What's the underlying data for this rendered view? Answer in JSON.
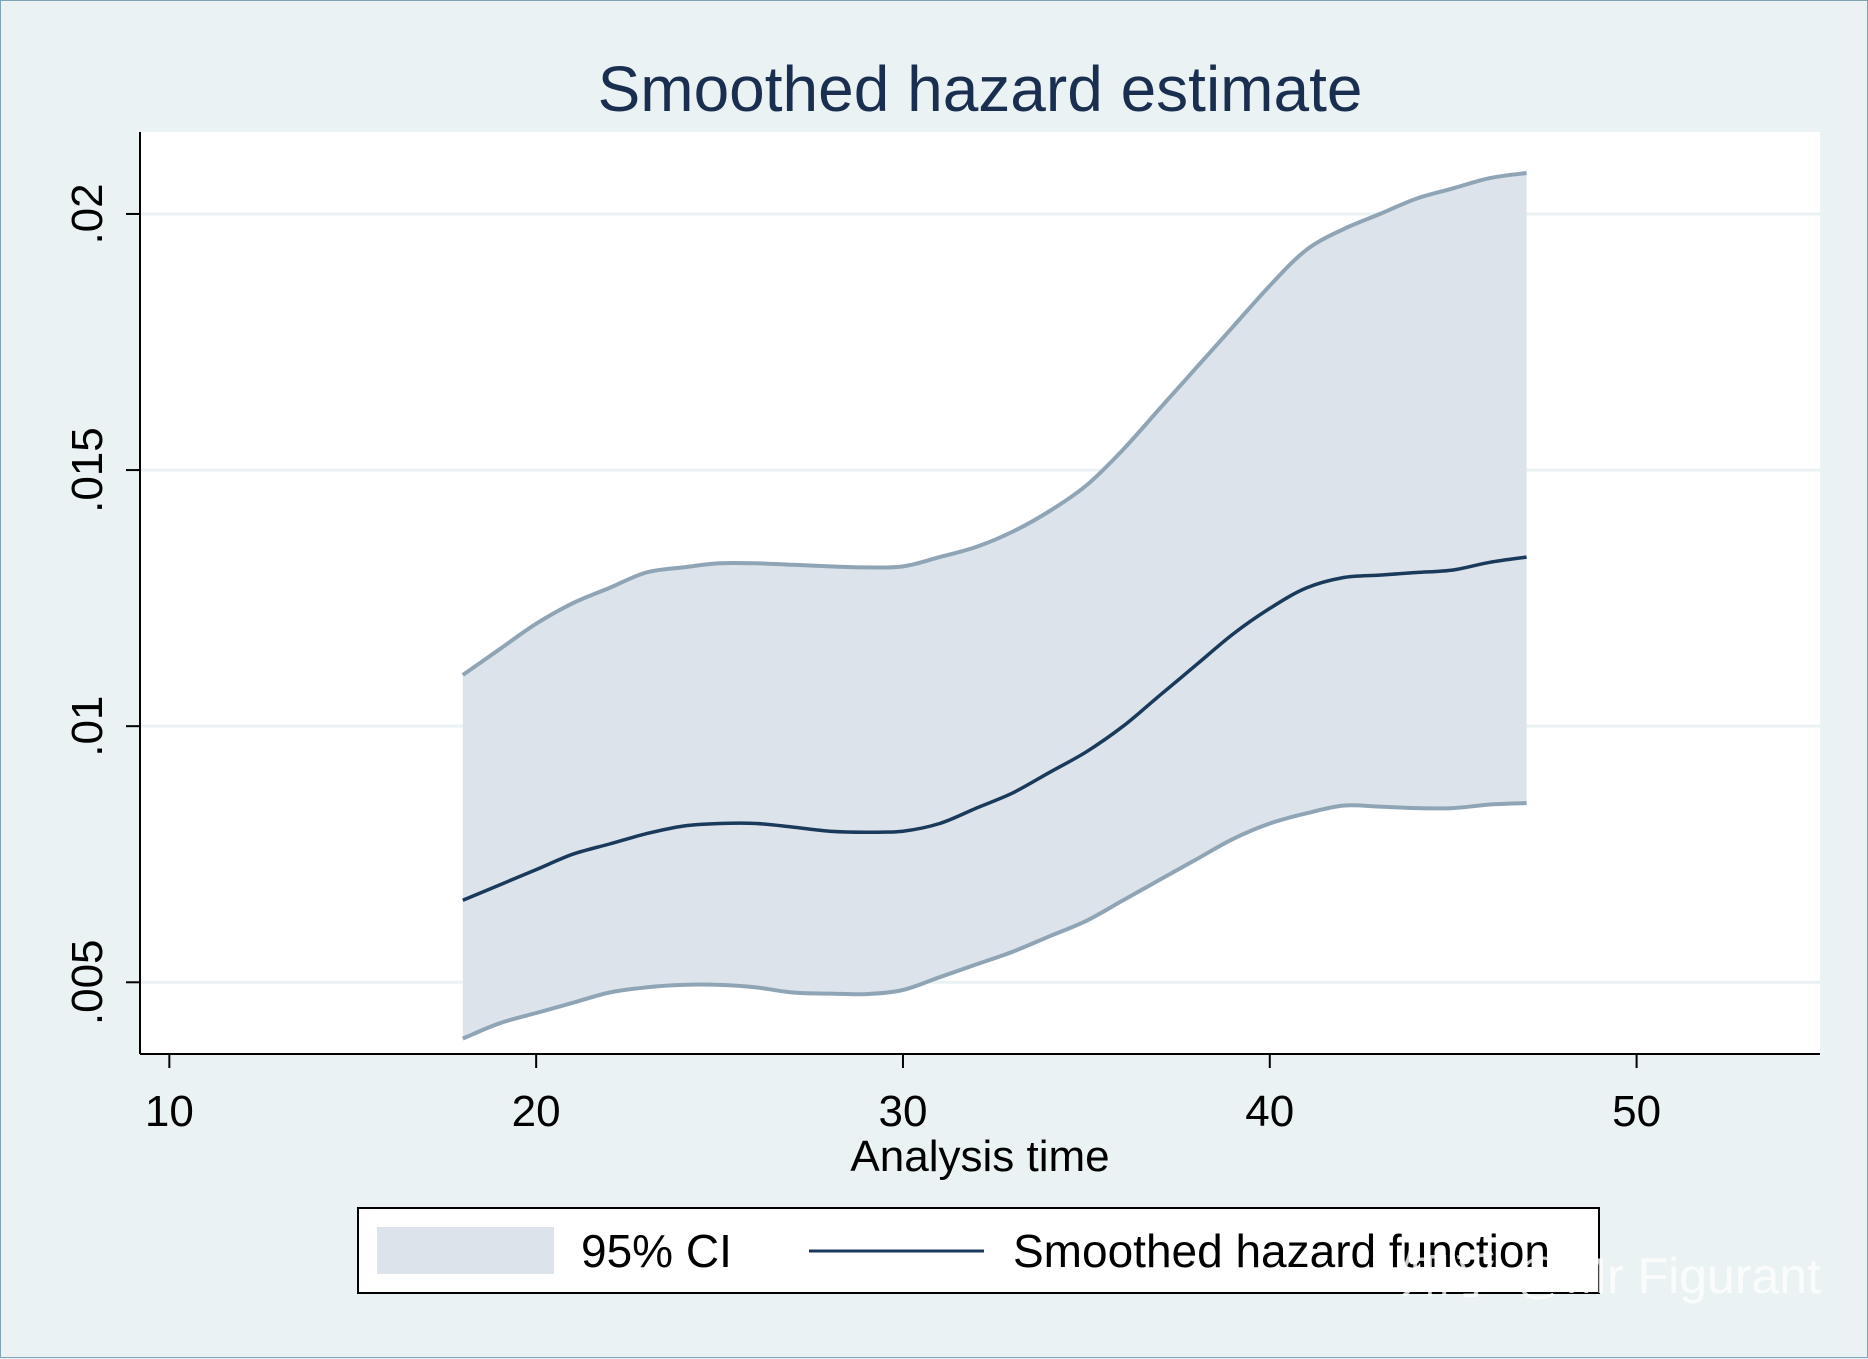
{
  "chart_data": {
    "type": "area",
    "title": "Smoothed hazard estimate",
    "xlabel": "Analysis time",
    "ylabel": "",
    "xlim": [
      9.2,
      55
    ],
    "ylim": [
      0.0036,
      0.0216
    ],
    "xticks": [
      10,
      20,
      30,
      40,
      50
    ],
    "xtick_labels": [
      "10",
      "20",
      "30",
      "40",
      "50"
    ],
    "yticks": [
      0.005,
      0.01,
      0.015,
      0.02
    ],
    "ytick_labels": [
      ".005",
      ".01",
      ".015",
      ".02"
    ],
    "grid": true,
    "legend_position": "bottom",
    "x": [
      18,
      19,
      20,
      21,
      22,
      23,
      24,
      25,
      26,
      27,
      28,
      29,
      30,
      31,
      32,
      33,
      34,
      35,
      36,
      37,
      38,
      39,
      40,
      41,
      42,
      43,
      44,
      45,
      46,
      47
    ],
    "series": [
      {
        "name": "95% CI",
        "kind": "band",
        "lower": [
          0.0039,
          0.0042,
          0.0044,
          0.0046,
          0.0048,
          0.0049,
          0.00495,
          0.00495,
          0.0049,
          0.0048,
          0.00478,
          0.00477,
          0.00485,
          0.0051,
          0.00535,
          0.0056,
          0.0059,
          0.0062,
          0.0066,
          0.007,
          0.0074,
          0.0078,
          0.0081,
          0.0083,
          0.00845,
          0.00843,
          0.0084,
          0.0084,
          0.00847,
          0.0085
        ],
        "upper": [
          0.011,
          0.0115,
          0.012,
          0.0124,
          0.0127,
          0.013,
          0.0131,
          0.01318,
          0.01318,
          0.01315,
          0.01312,
          0.0131,
          0.01312,
          0.0133,
          0.0135,
          0.0138,
          0.0142,
          0.0147,
          0.0154,
          0.0162,
          0.017,
          0.0178,
          0.0186,
          0.0193,
          0.0197,
          0.02,
          0.0203,
          0.0205,
          0.0207,
          0.0208
        ]
      },
      {
        "name": "Smoothed hazard function",
        "kind": "line",
        "values": [
          0.0066,
          0.0069,
          0.0072,
          0.0075,
          0.0077,
          0.0079,
          0.00805,
          0.0081,
          0.0081,
          0.00803,
          0.00795,
          0.00793,
          0.00795,
          0.0081,
          0.0084,
          0.0087,
          0.0091,
          0.0095,
          0.01,
          0.0106,
          0.0112,
          0.0118,
          0.0123,
          0.0127,
          0.0129,
          0.01295,
          0.013,
          0.01305,
          0.0132,
          0.0133
        ]
      }
    ],
    "colors": {
      "band": "#dde3ea",
      "band_edge": "#8fa5b6",
      "line": "#1a3a5c",
      "plot_bg": "#ffffff",
      "grid": "#eaf2f3"
    }
  },
  "legend": {
    "items": [
      "95% CI",
      "Smoothed hazard function"
    ]
  },
  "watermark": "知乎 @Mr Figurant"
}
